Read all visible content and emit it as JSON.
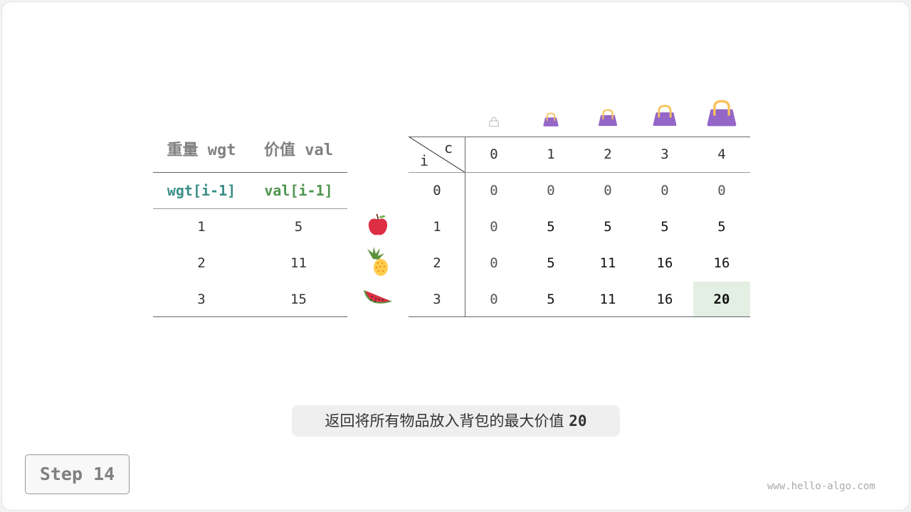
{
  "items_table": {
    "headers": [
      "重量 wgt",
      "价值 val"
    ],
    "subheaders": [
      "wgt[i-1]",
      "val[i-1]"
    ],
    "rows": [
      [
        "1",
        "5"
      ],
      [
        "2",
        "11"
      ],
      [
        "3",
        "15"
      ]
    ],
    "fruit_icons": [
      "apple-icon",
      "pineapple-icon",
      "watermelon-icon"
    ]
  },
  "dp_table": {
    "row_axis": "i",
    "col_axis": "c",
    "capacities": [
      "0",
      "1",
      "2",
      "3",
      "4"
    ],
    "row_labels": [
      "0",
      "1",
      "2",
      "3"
    ],
    "cells": [
      [
        "0",
        "0",
        "0",
        "0",
        "0"
      ],
      [
        "0",
        "5",
        "5",
        "5",
        "5"
      ],
      [
        "0",
        "5",
        "11",
        "16",
        "16"
      ],
      [
        "0",
        "5",
        "11",
        "16",
        "20"
      ]
    ],
    "highlight": {
      "row": 3,
      "col": 4,
      "color": "#e3efe3"
    },
    "bag_icons": [
      "bag-icon",
      "bag-icon",
      "bag-icon",
      "bag-icon",
      "bag-icon"
    ]
  },
  "colors": {
    "wgt": "#3a8f86",
    "val": "#4f944f",
    "bag": "#9466c8",
    "handle": "#f6c35a"
  },
  "caption": {
    "text": "返回将所有物品放入背包的最大价值",
    "value": "20"
  },
  "step_label": "Step 14",
  "watermark": "www.hello-algo.com"
}
